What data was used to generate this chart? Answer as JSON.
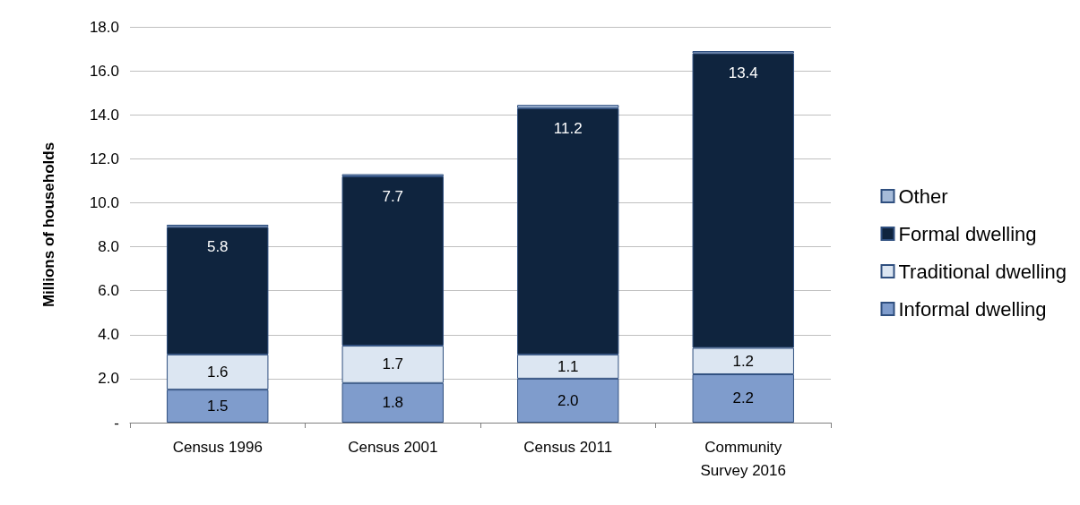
{
  "chart_data": {
    "type": "bar",
    "stacked": true,
    "ylabel": "Millions of households",
    "categories": [
      "Census 1996",
      "Census 2001",
      "Census 2011",
      "Community\nSurvey 2016"
    ],
    "series": [
      {
        "name": "Informal dwelling",
        "color": "#7f9ccc",
        "values": [
          1.5,
          1.8,
          2.0,
          2.2
        ],
        "value_labels": [
          "1.5",
          "1.8",
          "2.0",
          "2.2"
        ]
      },
      {
        "name": "Traditional dwelling",
        "color": "#dce6f2",
        "values": [
          1.6,
          1.7,
          1.1,
          1.2
        ],
        "value_labels": [
          "1.6",
          "1.7",
          "1.1",
          "1.2"
        ]
      },
      {
        "name": "Formal dwelling",
        "color": "#0f243e",
        "values": [
          5.8,
          7.7,
          11.2,
          13.4
        ],
        "value_labels": [
          "5.8",
          "7.7",
          "11.2",
          "13.4"
        ]
      },
      {
        "name": "Other",
        "color": "#a6bbd9",
        "values": [
          0.1,
          0.1,
          0.15,
          0.1
        ]
      }
    ],
    "ylim": [
      0,
      18
    ],
    "yticks": [
      {
        "value": 0,
        "label": "-"
      },
      {
        "value": 2,
        "label": "2.0"
      },
      {
        "value": 4,
        "label": "4.0"
      },
      {
        "value": 6,
        "label": "6.0"
      },
      {
        "value": 8,
        "label": "8.0"
      },
      {
        "value": 10,
        "label": "10.0"
      },
      {
        "value": 12,
        "label": "12.0"
      },
      {
        "value": 14,
        "label": "14.0"
      },
      {
        "value": 16,
        "label": "16.0"
      },
      {
        "value": 18,
        "label": "18.0"
      }
    ],
    "grid": "y",
    "legend": "right"
  }
}
